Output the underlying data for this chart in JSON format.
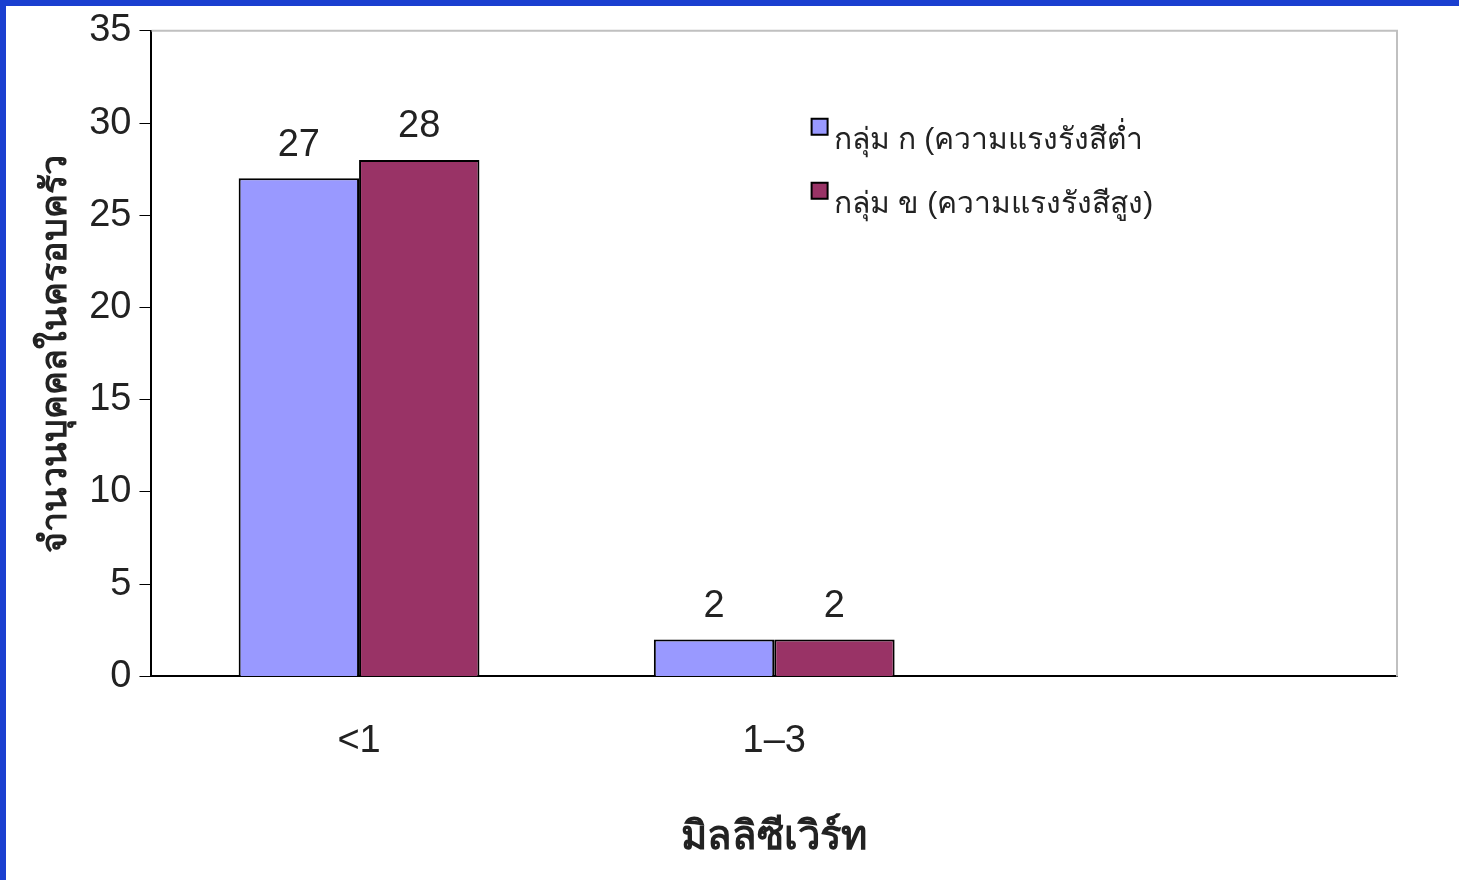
{
  "chart_data": {
    "type": "bar",
    "xlabel": "มิลลิซีเวิร์ท",
    "ylabel": "จำนวนบุคคลในครอบครัว",
    "categories": [
      "<1",
      "1–3",
      null
    ],
    "series": [
      {
        "name": "กลุ่ม ก (ความแรงรังสีต่ำ",
        "color": "#9999ff",
        "values": [
          27,
          2,
          null
        ]
      },
      {
        "name": "กลุ่ม ข (ความแรงรังสีสูง)",
        "color": "#993366",
        "values": [
          28,
          2,
          null
        ]
      }
    ],
    "ylim": [
      0,
      35
    ],
    "yticks": [
      0,
      5,
      10,
      15,
      20,
      25,
      30,
      35
    ],
    "grid": false,
    "legend": "top right",
    "data_labels": true
  }
}
